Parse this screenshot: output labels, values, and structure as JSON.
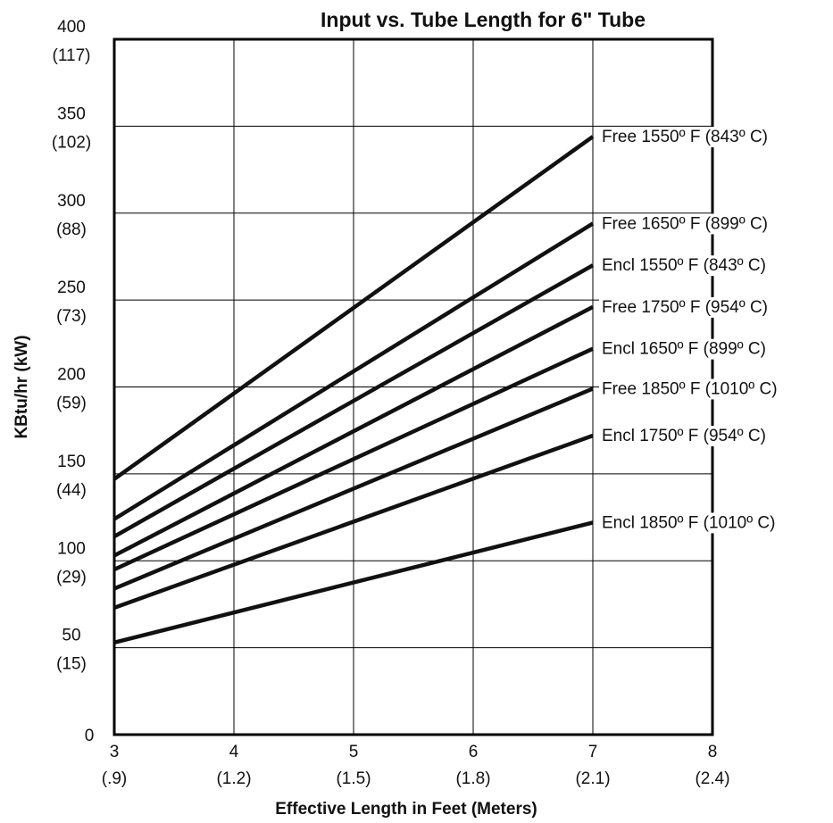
{
  "chart_data": {
    "type": "line",
    "title": "Input vs. Tube Length for 6\" Tube",
    "xlabel": "Effective Length in Feet (Meters)",
    "ylabel": "KBtu/hr (kW)",
    "xlim": [
      3,
      8
    ],
    "ylim": [
      0,
      400
    ],
    "grid": true,
    "x_ticks": [
      {
        "value": 3,
        "label": "3",
        "sublabel": "(.9)"
      },
      {
        "value": 4,
        "label": "4",
        "sublabel": "(1.2)"
      },
      {
        "value": 5,
        "label": "5",
        "sublabel": "(1.5)"
      },
      {
        "value": 6,
        "label": "6",
        "sublabel": "(1.8)"
      },
      {
        "value": 7,
        "label": "7",
        "sublabel": "(2.1)"
      },
      {
        "value": 8,
        "label": "8",
        "sublabel": "(2.4)"
      }
    ],
    "y_ticks": [
      {
        "value": 0,
        "label": "0",
        "sublabel": ""
      },
      {
        "value": 50,
        "label": "50",
        "sublabel": "(15)"
      },
      {
        "value": 100,
        "label": "100",
        "sublabel": "(29)"
      },
      {
        "value": 150,
        "label": "150",
        "sublabel": "(44)"
      },
      {
        "value": 200,
        "label": "200",
        "sublabel": "(59)"
      },
      {
        "value": 250,
        "label": "250",
        "sublabel": "(73)"
      },
      {
        "value": 300,
        "label": "300",
        "sublabel": "(88)"
      },
      {
        "value": 350,
        "label": "350",
        "sublabel": "(102)"
      },
      {
        "value": 400,
        "label": "400",
        "sublabel": "(117)"
      }
    ],
    "series": [
      {
        "name": "Free 1550º F (843º C)",
        "x": [
          3,
          7
        ],
        "y": [
          147,
          344
        ]
      },
      {
        "name": "Free 1650º F (899º C)",
        "x": [
          3,
          7
        ],
        "y": [
          124,
          294
        ]
      },
      {
        "name": "Encl 1550º F (843º C)",
        "x": [
          3,
          7
        ],
        "y": [
          114,
          270
        ]
      },
      {
        "name": "Free 1750º F (954º C)",
        "x": [
          3,
          7
        ],
        "y": [
          103,
          246
        ]
      },
      {
        "name": "Encl 1650º F (899º C)",
        "x": [
          3,
          7
        ],
        "y": [
          95,
          222
        ]
      },
      {
        "name": "Free 1850º F (1010º C)",
        "x": [
          3,
          7
        ],
        "y": [
          84,
          199
        ]
      },
      {
        "name": "Encl 1750º F (954º C)",
        "x": [
          3,
          7
        ],
        "y": [
          73,
          172
        ]
      },
      {
        "name": "Encl 1850º F (1010º C)",
        "x": [
          3,
          7
        ],
        "y": [
          53,
          122
        ]
      }
    ]
  }
}
